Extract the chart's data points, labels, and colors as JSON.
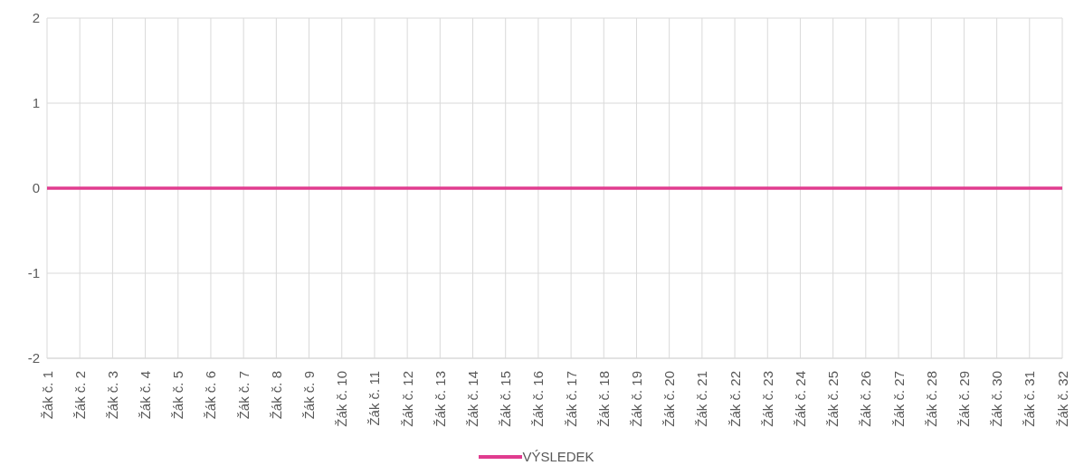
{
  "chart_data": {
    "type": "line",
    "categories": [
      "Žák č. 1",
      "Žák č. 2",
      "Žák č. 3",
      "Žák č. 4",
      "Žák č. 5",
      "Žák č. 6",
      "Žák č. 7",
      "Žák č. 8",
      "Žák č. 9",
      "Žák č. 10",
      "Žák č. 11",
      "Žák č. 12",
      "Žák č. 13",
      "Žák č. 14",
      "Žák č. 15",
      "Žák č. 16",
      "Žák č. 17",
      "Žák č. 18",
      "Žák č. 19",
      "Žák č. 20",
      "Žák č. 21",
      "Žák č. 22",
      "Žák č. 23",
      "Žák č. 24",
      "Žák č. 25",
      "Žák č. 26",
      "Žák č. 27",
      "Žák č. 28",
      "Žák č. 29",
      "Žák č. 30",
      "Žák č. 31",
      "Žák č. 32"
    ],
    "series": [
      {
        "name": "VÝSLEDEK",
        "color": "#e03c8f",
        "values": [
          0,
          0,
          0,
          0,
          0,
          0,
          0,
          0,
          0,
          0,
          0,
          0,
          0,
          0,
          0,
          0,
          0,
          0,
          0,
          0,
          0,
          0,
          0,
          0,
          0,
          0,
          0,
          0,
          0,
          0,
          0,
          0
        ]
      }
    ],
    "ylim": [
      -2,
      2
    ],
    "yticks": [
      -2,
      -1,
      0,
      1,
      2
    ],
    "grid": true,
    "legend": "bottom",
    "marker": "none",
    "line_style": "solid"
  }
}
